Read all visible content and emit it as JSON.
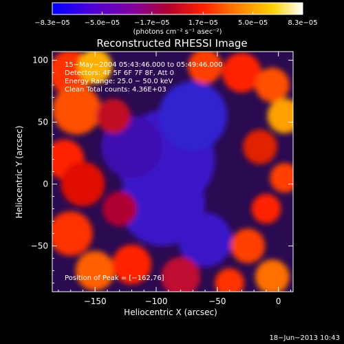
{
  "chart_data": {
    "type": "heatmap",
    "title": "Reconstructed RHESSI Image",
    "xlabel": "Heliocentric X (arcsec)",
    "ylabel": "Heliocentric Y (arcsec)",
    "xlim": [
      -185,
      12
    ],
    "ylim": [
      -87,
      107
    ],
    "x_ticks": [
      -150,
      -100,
      -50,
      0
    ],
    "x_tick_labels": [
      "−150",
      "−100",
      "−50",
      "0"
    ],
    "y_ticks": [
      -50,
      0,
      50,
      100
    ],
    "y_tick_labels": [
      "−50",
      "0",
      "50",
      "100"
    ],
    "colorbar": {
      "min": -8.3e-05,
      "max": 8.3e-05,
      "ticks": [
        -8.3e-05,
        -5e-05,
        -1.7e-05,
        1.7e-05,
        5e-05,
        8.3e-05
      ],
      "tick_labels": [
        "−8.3e−05",
        "−5.0e−05",
        "−1.7e−05",
        "1.7e−05",
        "5.0e−05",
        "8.3e−05"
      ],
      "units_label": "(photons cm⁻² s⁻¹ asec⁻²)",
      "colors": [
        "#0000ff",
        "#5000d8",
        "#8000a0",
        "#b00030",
        "#ff2000",
        "#ff8000",
        "#ffd000",
        "#ffffff"
      ]
    },
    "annotations": [
      "15−May−2004 05:43:46.000 to 05:49:46.000",
      "Detectors: 4F 5F 6F 7F 8F, Att 0",
      "Energy Range: 25.0 − 50.0 keV",
      "Clean    Total counts: 4.36E+03"
    ],
    "peak_label": "Position of Peak = [−162,76]",
    "peak": [
      -162,
      76
    ],
    "grid": false
  },
  "footer": {
    "timestamp": "18−Jun−2013 10:43"
  }
}
